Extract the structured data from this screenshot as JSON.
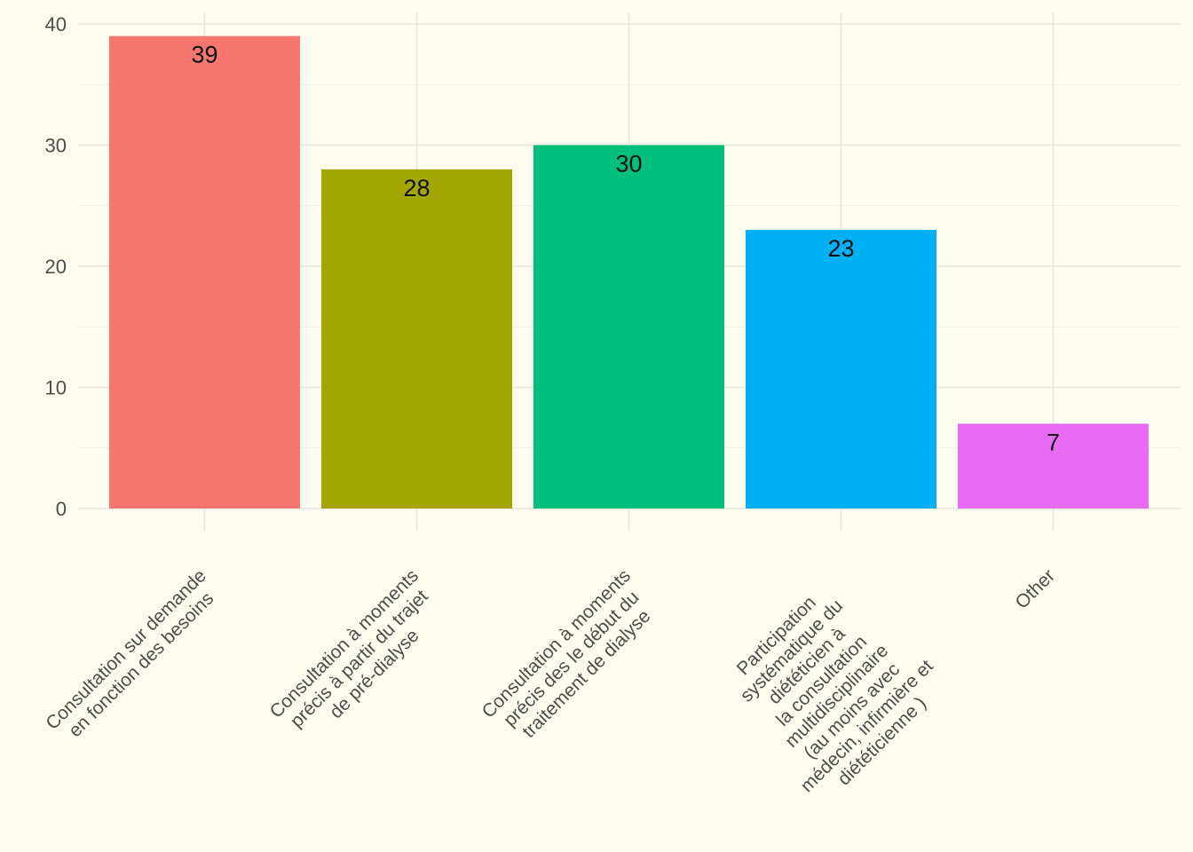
{
  "chart_data": {
    "type": "bar",
    "categories": [
      [
        "Consultation sur demande",
        "en fonction des besoins"
      ],
      [
        "Consultation à moments",
        "précis à partir du trajet",
        "de pré-dialyse"
      ],
      [
        "Consultation à moments",
        "précis des le début du",
        "traitement de dialyse"
      ],
      [
        "Participation",
        "systématique du",
        "diététicien à",
        "la consultation",
        "multidisciplinaire",
        "(au moins avec",
        "médecin, infirmière et",
        "diététicienne )"
      ],
      [
        "Other"
      ]
    ],
    "values": [
      39,
      28,
      30,
      23,
      7
    ],
    "data_labels": [
      "39",
      "28",
      "30",
      "23",
      "7"
    ],
    "colors": [
      "#f8766d",
      "#a3a500",
      "#00bf7d",
      "#00b0f6",
      "#e76bf3"
    ],
    "yticks": [
      "0",
      "10",
      "20",
      "30",
      "40"
    ],
    "ylim": [
      0,
      40
    ],
    "grid": true,
    "legend": "none",
    "title": "",
    "xlabel": "",
    "ylabel": ""
  }
}
